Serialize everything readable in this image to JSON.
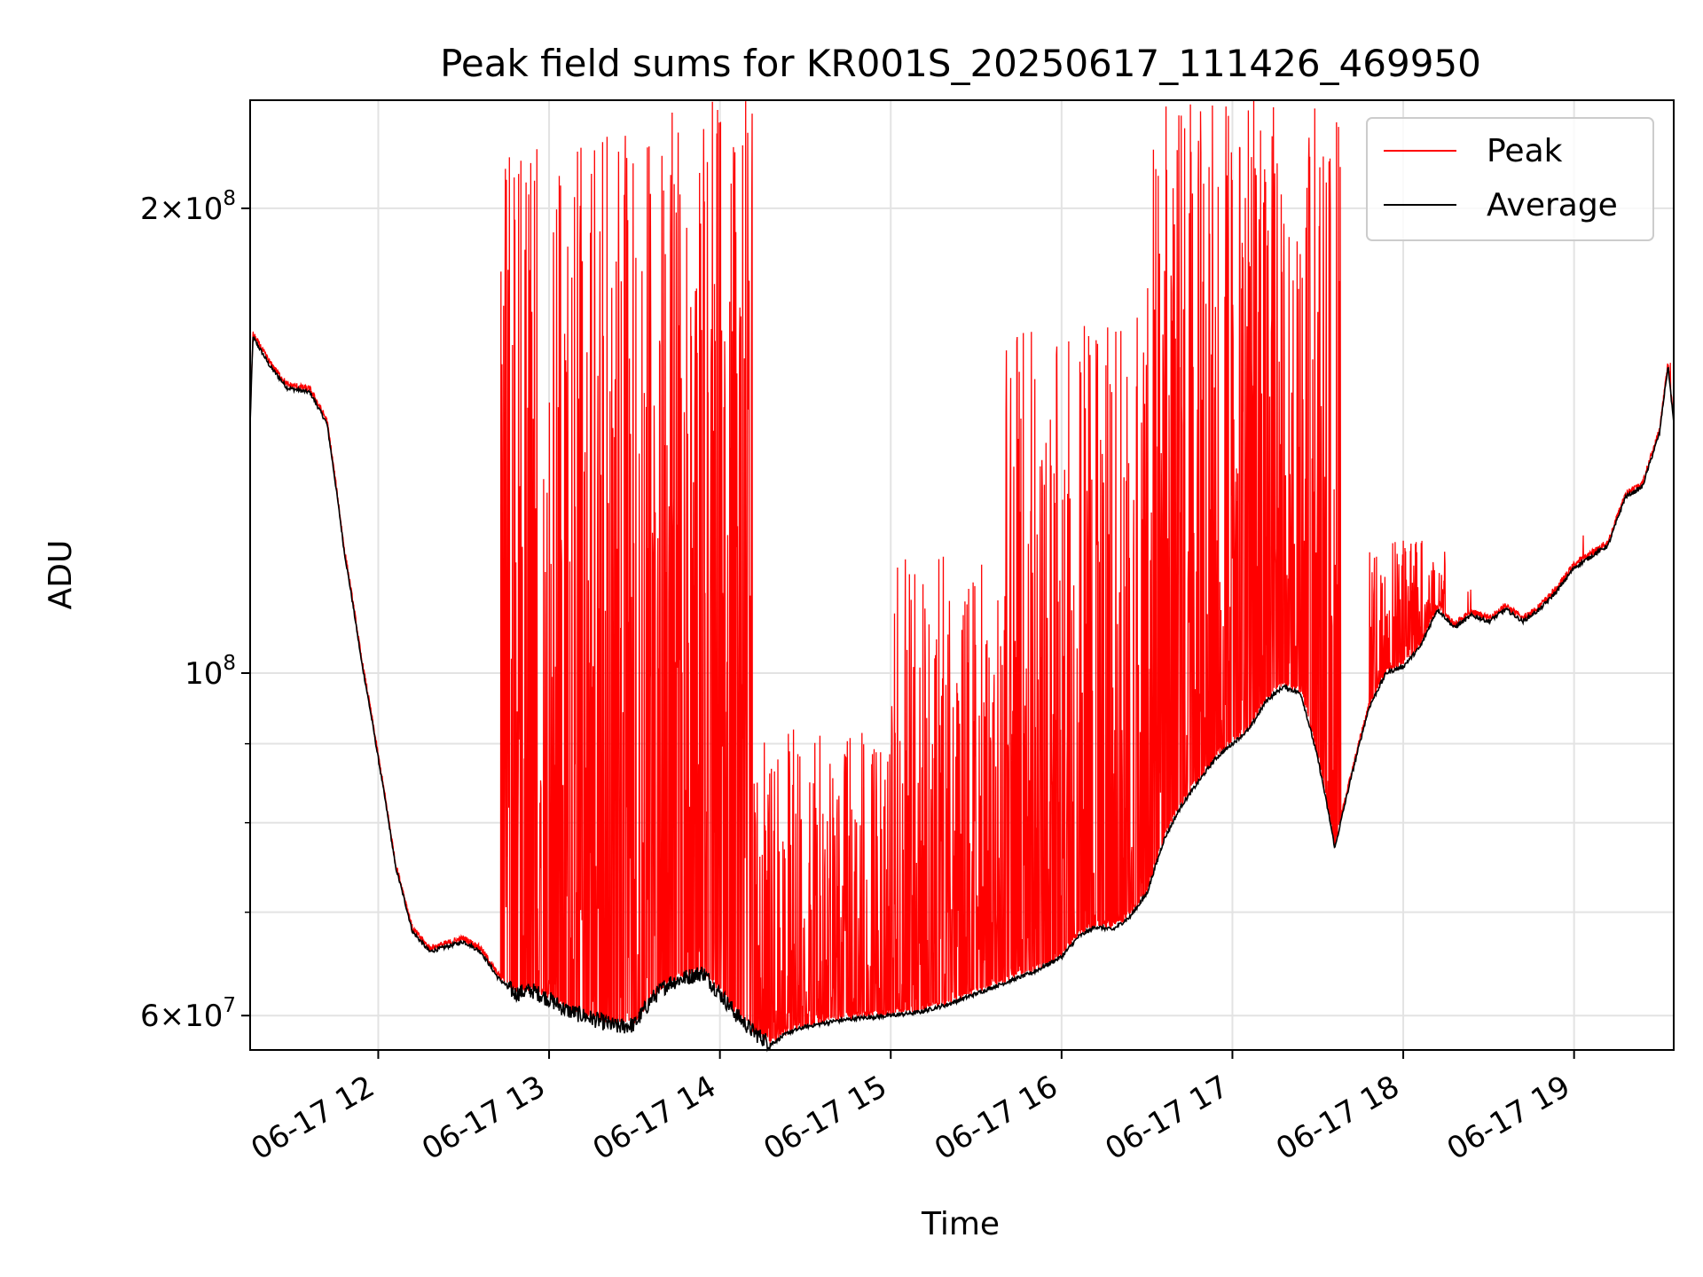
{
  "chart_data": {
    "type": "line",
    "title": "Peak field sums for KR001S_20250617_111426_469950",
    "xlabel": "Time",
    "ylabel": "ADU",
    "y_scale": "log",
    "grid": true,
    "legend_position": "top-right",
    "xlim": [
      "2025-06-17 11:15",
      "2025-06-17 19:35"
    ],
    "ylim": [
      57000000,
      235000000
    ],
    "x_ticks": [
      {
        "value": "2025-06-17 12:00",
        "label": "06-17 12"
      },
      {
        "value": "2025-06-17 13:00",
        "label": "06-17 13"
      },
      {
        "value": "2025-06-17 14:00",
        "label": "06-17 14"
      },
      {
        "value": "2025-06-17 15:00",
        "label": "06-17 15"
      },
      {
        "value": "2025-06-17 16:00",
        "label": "06-17 16"
      },
      {
        "value": "2025-06-17 17:00",
        "label": "06-17 17"
      },
      {
        "value": "2025-06-17 18:00",
        "label": "06-17 18"
      },
      {
        "value": "2025-06-17 19:00",
        "label": "06-17 19"
      }
    ],
    "y_major_ticks": [
      {
        "value": 60000000,
        "mant": "6",
        "exp": "7"
      },
      {
        "value": 100000000,
        "mant": "",
        "exp": "8"
      },
      {
        "value": 200000000,
        "mant": "2",
        "exp": "8"
      }
    ],
    "y_minor_ticks": [
      70000000,
      80000000,
      90000000
    ],
    "series": [
      {
        "name": "Peak",
        "color": "#ff0000",
        "description": "spiky trace of per-frame peak sums"
      },
      {
        "name": "Average",
        "color": "#000000",
        "description": "smooth trace of average field sum"
      }
    ],
    "average_points": [
      [
        "2025-06-17 11:15",
        145000000
      ],
      [
        "2025-06-17 11:16",
        165000000
      ],
      [
        "2025-06-17 11:22",
        158000000
      ],
      [
        "2025-06-17 11:28",
        153000000
      ],
      [
        "2025-06-17 11:36",
        152000000
      ],
      [
        "2025-06-17 11:42",
        145000000
      ],
      [
        "2025-06-17 11:48",
        120000000
      ],
      [
        "2025-06-17 11:54",
        102000000
      ],
      [
        "2025-06-17 12:00",
        88000000
      ],
      [
        "2025-06-17 12:06",
        75000000
      ],
      [
        "2025-06-17 12:12",
        68000000
      ],
      [
        "2025-06-17 12:18",
        66000000
      ],
      [
        "2025-06-17 12:24",
        66500000
      ],
      [
        "2025-06-17 12:30",
        67000000
      ],
      [
        "2025-06-17 12:36",
        66000000
      ],
      [
        "2025-06-17 12:42",
        63500000
      ],
      [
        "2025-06-17 12:48",
        62000000
      ],
      [
        "2025-06-17 12:54",
        62300000
      ],
      [
        "2025-06-17 13:00",
        61500000
      ],
      [
        "2025-06-17 13:06",
        60500000
      ],
      [
        "2025-06-17 13:12",
        60000000
      ],
      [
        "2025-06-17 13:18",
        59500000
      ],
      [
        "2025-06-17 13:24",
        59000000
      ],
      [
        "2025-06-17 13:30",
        59200000
      ],
      [
        "2025-06-17 13:36",
        61500000
      ],
      [
        "2025-06-17 13:42",
        63000000
      ],
      [
        "2025-06-17 13:48",
        63500000
      ],
      [
        "2025-06-17 13:54",
        64000000
      ],
      [
        "2025-06-17 14:00",
        62000000
      ],
      [
        "2025-06-17 14:06",
        60000000
      ],
      [
        "2025-06-17 14:12",
        58500000
      ],
      [
        "2025-06-17 14:18",
        57500000
      ],
      [
        "2025-06-17 14:24",
        58500000
      ],
      [
        "2025-06-17 14:30",
        59000000
      ],
      [
        "2025-06-17 14:40",
        59500000
      ],
      [
        "2025-06-17 14:50",
        59800000
      ],
      [
        "2025-06-17 15:00",
        60000000
      ],
      [
        "2025-06-17 15:10",
        60300000
      ],
      [
        "2025-06-17 15:20",
        61000000
      ],
      [
        "2025-06-17 15:30",
        62000000
      ],
      [
        "2025-06-17 15:40",
        63000000
      ],
      [
        "2025-06-17 15:50",
        64000000
      ],
      [
        "2025-06-17 16:00",
        65500000
      ],
      [
        "2025-06-17 16:06",
        67500000
      ],
      [
        "2025-06-17 16:12",
        68500000
      ],
      [
        "2025-06-17 16:18",
        68200000
      ],
      [
        "2025-06-17 16:24",
        69500000
      ],
      [
        "2025-06-17 16:30",
        72000000
      ],
      [
        "2025-06-17 16:36",
        78000000
      ],
      [
        "2025-06-17 16:42",
        82000000
      ],
      [
        "2025-06-17 16:48",
        85000000
      ],
      [
        "2025-06-17 16:54",
        88000000
      ],
      [
        "2025-06-17 17:00",
        90000000
      ],
      [
        "2025-06-17 17:06",
        92000000
      ],
      [
        "2025-06-17 17:12",
        96000000
      ],
      [
        "2025-06-17 17:18",
        98000000
      ],
      [
        "2025-06-17 17:24",
        97000000
      ],
      [
        "2025-06-17 17:30",
        88000000
      ],
      [
        "2025-06-17 17:36",
        77000000
      ],
      [
        "2025-06-17 17:42",
        86000000
      ],
      [
        "2025-06-17 17:48",
        95000000
      ],
      [
        "2025-06-17 17:54",
        100000000
      ],
      [
        "2025-06-17 18:00",
        101000000
      ],
      [
        "2025-06-17 18:06",
        104000000
      ],
      [
        "2025-06-17 18:12",
        110000000
      ],
      [
        "2025-06-17 18:18",
        107000000
      ],
      [
        "2025-06-17 18:24",
        109000000
      ],
      [
        "2025-06-17 18:30",
        108000000
      ],
      [
        "2025-06-17 18:36",
        110000000
      ],
      [
        "2025-06-17 18:42",
        108000000
      ],
      [
        "2025-06-17 18:48",
        110000000
      ],
      [
        "2025-06-17 18:54",
        113000000
      ],
      [
        "2025-06-17 19:00",
        117000000
      ],
      [
        "2025-06-17 19:06",
        119000000
      ],
      [
        "2025-06-17 19:12",
        121000000
      ],
      [
        "2025-06-17 19:18",
        130000000
      ],
      [
        "2025-06-17 19:24",
        132000000
      ],
      [
        "2025-06-17 19:30",
        143000000
      ],
      [
        "2025-06-17 19:33",
        158000000
      ],
      [
        "2025-06-17 19:35",
        145000000
      ]
    ],
    "peak_spike_regions": [
      {
        "start": "2025-06-17 12:43",
        "end": "2025-06-17 13:35",
        "max": 225000000
      },
      {
        "start": "2025-06-17 13:35",
        "end": "2025-06-17 14:12",
        "max": 235000000
      },
      {
        "start": "2025-06-17 14:12",
        "end": "2025-06-17 15:00",
        "max": 92000000
      },
      {
        "start": "2025-06-17 15:00",
        "end": "2025-06-17 15:40",
        "max": 120000000
      },
      {
        "start": "2025-06-17 15:40",
        "end": "2025-06-17 16:30",
        "max": 170000000
      },
      {
        "start": "2025-06-17 16:30",
        "end": "2025-06-17 17:38",
        "max": 235000000
      },
      {
        "start": "2025-06-17 17:48",
        "end": "2025-06-17 18:15",
        "max": 122000000
      }
    ]
  }
}
